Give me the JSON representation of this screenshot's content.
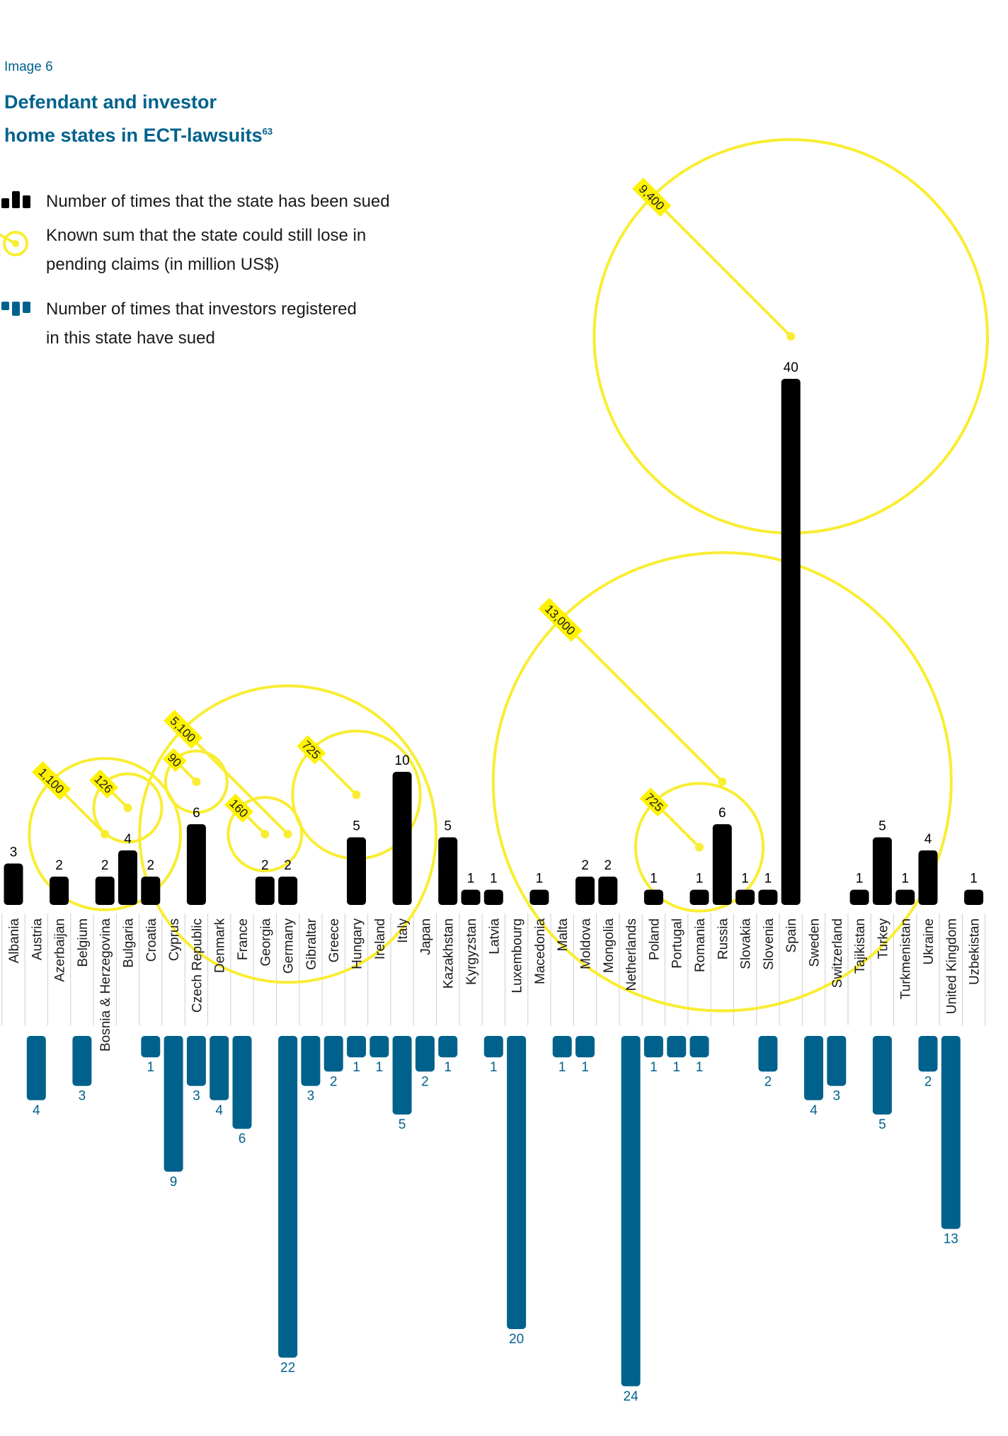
{
  "header": {
    "eyebrow": "Image 6",
    "title_line1": "Defendant and investor",
    "title_line2": "home states in ECT-lawsuits",
    "footnote": "63"
  },
  "legend": {
    "sued_text": "Number of times that the state has been sued",
    "pending_text_line1": "Known sum that the state could still lose in",
    "pending_text_line2": "pending claims (in million US$)",
    "investor_text_line1": "Number of times that investors registered",
    "investor_text_line2": "in this state have sued"
  },
  "colors": {
    "sued": "#000000",
    "investor": "#00628c",
    "pending": "#f9ed32",
    "pending_label_bg": "#fff200",
    "title": "#00628c"
  },
  "chart_data": {
    "type": "bar",
    "categories": [
      "Albania",
      "Austria",
      "Azerbaijan",
      "Belgium",
      "Bosnia & Herzegovina",
      "Bulgaria",
      "Croatia",
      "Cyprus",
      "Czech Republic",
      "Denmark",
      "France",
      "Georgia",
      "Germany",
      "Gibraltar",
      "Greece",
      "Hungary",
      "Ireland",
      "Italy",
      "Japan",
      "Kazakhstan",
      "Kyrgyzstan",
      "Latvia",
      "Luxembourg",
      "Macedonia",
      "Malta",
      "Moldova",
      "Mongolia",
      "Netherlands",
      "Poland",
      "Portugal",
      "Romania",
      "Russia",
      "Slovakia",
      "Slovenia",
      "Spain",
      "Sweden",
      "Switzerland",
      "Tajikistan",
      "Turkey",
      "Turkmenistan",
      "Ukraine",
      "United Kingdom",
      "Uzbekistan"
    ],
    "series": [
      {
        "name": "Number of times that the state has been sued",
        "values": [
          3,
          0,
          2,
          0,
          2,
          4,
          2,
          0,
          6,
          0,
          0,
          2,
          2,
          0,
          0,
          5,
          0,
          10,
          0,
          5,
          1,
          1,
          0,
          1,
          0,
          2,
          2,
          0,
          1,
          0,
          1,
          6,
          1,
          1,
          40,
          0,
          0,
          1,
          5,
          1,
          4,
          0,
          1
        ]
      },
      {
        "name": "Number of times that investors registered in this state have sued",
        "values": [
          0,
          4,
          0,
          3,
          0,
          0,
          1,
          9,
          3,
          4,
          6,
          0,
          22,
          3,
          2,
          1,
          1,
          5,
          2,
          1,
          0,
          1,
          20,
          0,
          1,
          1,
          0,
          24,
          1,
          1,
          1,
          0,
          0,
          2,
          0,
          4,
          3,
          0,
          5,
          0,
          2,
          13,
          0
        ]
      },
      {
        "name": "Known sum that the state could still lose in pending claims (in million US$)",
        "points": [
          {
            "country": "Bosnia & Herzegovina",
            "value": 1100,
            "label": "1,100"
          },
          {
            "country": "Bulgaria",
            "value": 126,
            "label": "126"
          },
          {
            "country": "Georgia",
            "value": 160,
            "label": "160"
          },
          {
            "country": "Czech Republic",
            "value": 90,
            "label": "90"
          },
          {
            "country": "Germany",
            "value": 5100,
            "label": "5,100"
          },
          {
            "country": "Hungary",
            "value": 725,
            "label": "725"
          },
          {
            "country": "Romania",
            "value": 725,
            "label": "725"
          },
          {
            "country": "Russia",
            "value": 13000,
            "label": "13,000"
          },
          {
            "country": "Spain",
            "value": 9400,
            "label": "9,400"
          }
        ]
      }
    ]
  }
}
